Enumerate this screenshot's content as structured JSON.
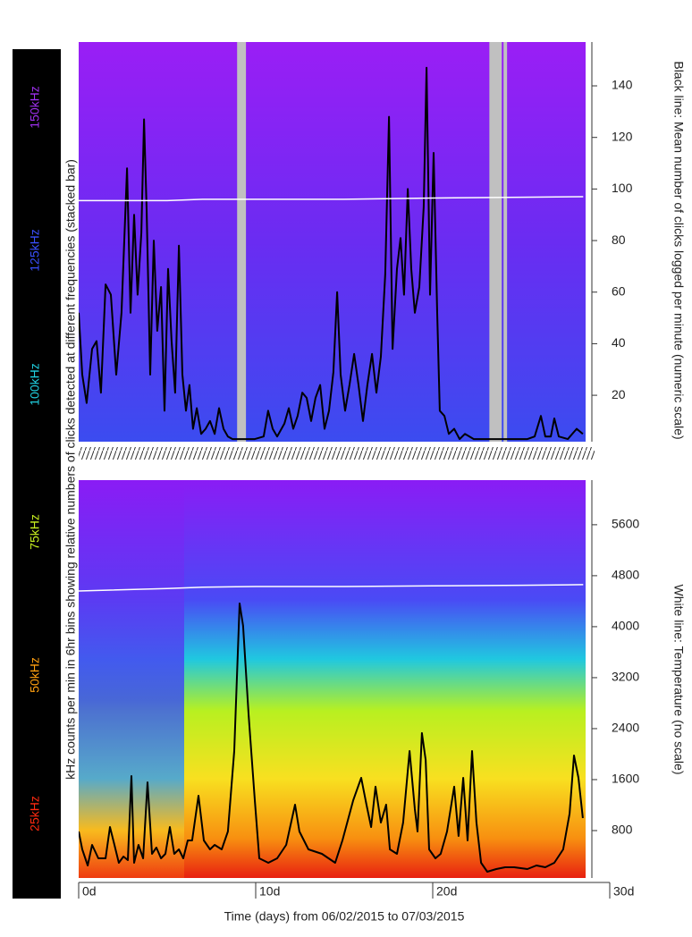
{
  "color_scale": {
    "items": [
      {
        "label": "25kHz",
        "color": "#ff2a10"
      },
      {
        "label": "50kHz",
        "color": "#ffa010"
      },
      {
        "label": "75kHz",
        "color": "#c8f020"
      },
      {
        "label": "100kHz",
        "color": "#20d0e0"
      },
      {
        "label": "125kHz",
        "color": "#3a50ff"
      },
      {
        "label": "150kHz",
        "color": "#a030f0"
      }
    ]
  },
  "ylabel_left": "kHz counts per min in 6hr bins showing relative numbers of clicks detected at different frequencies (stacked bar)",
  "chart_data": [
    {
      "type": "line",
      "ylabel": "Black line: Mean number of clicks logged per minute (numeric scale)",
      "xlim": [
        0,
        30
      ],
      "ylim": [
        2,
        157
      ],
      "yticks": [
        20,
        40,
        60,
        80,
        100,
        120,
        140
      ],
      "gaps": {
        "color": "#c0c0c0",
        "ranges": [
          [
            8.95,
            9.45
          ],
          [
            23.2,
            23.9
          ],
          [
            24.0,
            24.2
          ]
        ]
      },
      "series": [
        {
          "color": "#000000",
          "x": [
            0,
            0.2,
            0.45,
            0.76,
            1.01,
            1.26,
            1.52,
            1.82,
            2.12,
            2.42,
            2.73,
            2.93,
            3.13,
            3.33,
            3.54,
            3.69,
            3.84,
            4.04,
            4.24,
            4.44,
            4.65,
            4.85,
            5.05,
            5.25,
            5.45,
            5.66,
            5.86,
            6.06,
            6.26,
            6.46,
            6.67,
            6.92,
            7.17,
            7.42,
            7.68,
            7.93,
            8.18,
            8.43,
            8.69,
            9.19,
            9.95,
            10.45,
            10.7,
            10.96,
            11.21,
            11.62,
            11.87,
            12.12,
            12.37,
            12.63,
            12.88,
            13.13,
            13.38,
            13.64,
            13.89,
            14.14,
            14.39,
            14.6,
            14.8,
            15.05,
            15.3,
            15.56,
            15.81,
            16.06,
            16.31,
            16.57,
            16.82,
            17.07,
            17.32,
            17.53,
            17.73,
            17.98,
            18.18,
            18.38,
            18.59,
            18.79,
            18.99,
            19.24,
            19.49,
            19.65,
            19.85,
            20.05,
            20.25,
            20.4,
            20.66,
            20.91,
            21.21,
            21.52,
            21.82,
            22.32,
            23.08,
            24.09,
            24.85,
            25.35,
            25.76,
            26.11,
            26.36,
            26.67,
            26.87,
            27.12,
            27.63,
            28.13,
            28.48
          ],
          "values": [
            52,
            28,
            17,
            38,
            41,
            21,
            63,
            59,
            28,
            52,
            108,
            52,
            90,
            59,
            83,
            127,
            92,
            28,
            80,
            45,
            62,
            14,
            69,
            41,
            21,
            78,
            28,
            14,
            24,
            7,
            15,
            5,
            7,
            10,
            5,
            15,
            7,
            4,
            3,
            3,
            3,
            4,
            14,
            7,
            4,
            9,
            15,
            7,
            12,
            21,
            19,
            10,
            19,
            24,
            7,
            14,
            29,
            60,
            28,
            14,
            24,
            36,
            24,
            10,
            24,
            36,
            21,
            35,
            67,
            128,
            38,
            69,
            81,
            59,
            100,
            69,
            52,
            62,
            93,
            147,
            59,
            114,
            52,
            14,
            12,
            5,
            7,
            3,
            5,
            3,
            3,
            3,
            3,
            3,
            4,
            12,
            4,
            4,
            11,
            4,
            3,
            7,
            5
          ]
        },
        {
          "color": "#ffffff",
          "x": [
            0,
            5,
            7,
            10,
            15,
            20,
            25,
            28.5
          ],
          "values": [
            95.5,
            95.5,
            96,
            96,
            96,
            96.5,
            96.8,
            97
          ]
        }
      ]
    },
    {
      "type": "line",
      "ylabel": "White line: Temperature (no scale)",
      "xlabel": "Time (days) from 06/02/2015 to 07/03/2015",
      "xlim": [
        0,
        30
      ],
      "xticks": [
        {
          "value": 0,
          "label": "0d"
        },
        {
          "value": 10,
          "label": "10d"
        },
        {
          "value": 20,
          "label": "20d"
        },
        {
          "value": 30,
          "label": "30d"
        }
      ],
      "ylim": [
        56,
        6300
      ],
      "yticks": [
        800,
        1600,
        2400,
        3200,
        4000,
        4800,
        5600
      ],
      "series": [
        {
          "color": "#000000",
          "x": [
            0,
            0.2,
            0.51,
            0.76,
            1.11,
            1.52,
            1.77,
            2.02,
            2.27,
            2.53,
            2.78,
            2.98,
            3.13,
            3.38,
            3.64,
            3.89,
            4.14,
            4.39,
            4.65,
            4.9,
            5.15,
            5.4,
            5.66,
            5.91,
            6.16,
            6.41,
            6.77,
            7.07,
            7.42,
            7.68,
            8.08,
            8.43,
            8.79,
            9.09,
            9.29,
            9.6,
            9.95,
            10.2,
            10.71,
            11.21,
            11.72,
            12.22,
            12.47,
            12.98,
            13.74,
            14.49,
            14.9,
            15.51,
            15.96,
            16.26,
            16.52,
            16.77,
            17.07,
            17.37,
            17.58,
            17.98,
            18.33,
            18.69,
            18.99,
            19.14,
            19.39,
            19.6,
            19.8,
            20.15,
            20.45,
            20.81,
            21.21,
            21.46,
            21.72,
            21.97,
            22.22,
            22.47,
            22.73,
            23.08,
            23.59,
            24.09,
            24.6,
            25.35,
            25.86,
            26.36,
            26.87,
            27.37,
            27.73,
            27.98,
            28.23,
            28.48
          ],
          "values": [
            786,
            505,
            253,
            575,
            365,
            365,
            856,
            575,
            295,
            393,
            337,
            1656,
            295,
            575,
            365,
            1558,
            435,
            533,
            365,
            435,
            856,
            435,
            505,
            365,
            646,
            646,
            1347,
            646,
            505,
            575,
            505,
            786,
            2049,
            4365,
            4014,
            2611,
            1277,
            365,
            295,
            365,
            575,
            1207,
            786,
            505,
            435,
            295,
            646,
            1277,
            1628,
            1207,
            856,
            1488,
            926,
            1207,
            505,
            435,
            926,
            2049,
            1137,
            786,
            2330,
            1909,
            505,
            365,
            435,
            786,
            1488,
            716,
            1628,
            646,
            2049,
            926,
            295,
            154,
            196,
            225,
            225,
            196,
            253,
            225,
            295,
            505,
            1067,
            1979,
            1628,
            996
          ]
        },
        {
          "color": "#ffffff",
          "x": [
            0,
            5,
            7,
            10,
            15,
            20,
            25,
            28.5
          ],
          "values": [
            4560,
            4600,
            4620,
            4630,
            4630,
            4640,
            4650,
            4660
          ]
        }
      ]
    }
  ]
}
